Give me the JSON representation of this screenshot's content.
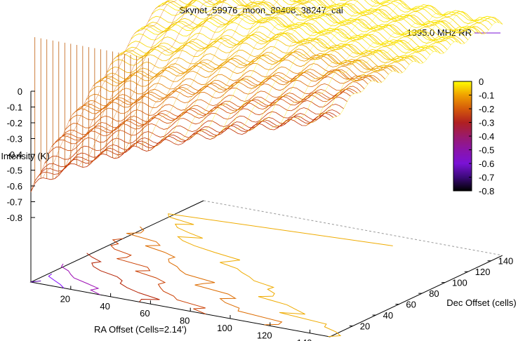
{
  "chart_data": {
    "type": "surface3d",
    "title": "Skynet_59976_moon_89408_38247_cal",
    "legend": {
      "label": "1395.0 MHz RR",
      "placement": "top-right"
    },
    "xlabel": "RA Offset (Cells=2.14')",
    "ylabel": "Dec Offset (cells)",
    "zlabel": "Intensity (K)",
    "xlim": [
      0,
      150
    ],
    "ylim": [
      0,
      150
    ],
    "zlim": [
      -0.8,
      0
    ],
    "x_ticks": [
      "20",
      "40",
      "60",
      "80",
      "100",
      "120",
      "140"
    ],
    "y_ticks": [
      "20",
      "40",
      "60",
      "80",
      "100",
      "120",
      "140"
    ],
    "z_ticks": [
      "0",
      "-0.1",
      "-0.2",
      "-0.3",
      "-0.4",
      "-0.5",
      "-0.6",
      "-0.7",
      "-0.8"
    ],
    "colorbar": {
      "ticks": [
        "0",
        "-0.1",
        "-0.2",
        "-0.3",
        "-0.4",
        "-0.5",
        "-0.6",
        "-0.7",
        "-0.8"
      ],
      "range": [
        -0.8,
        0
      ],
      "colors": [
        "#ffff00",
        "#f0a000",
        "#d55a0a",
        "#b02020",
        "#9a1a6a",
        "#8a14a8",
        "#7a12d6",
        "#3c0a7a",
        "#000000"
      ]
    },
    "surface": {
      "description_values": {
        "edge_z": -0.72,
        "center_z": -0.05,
        "far_edge_z": -0.02
      },
      "contour_levels": [
        -0.7,
        -0.6,
        -0.5,
        -0.4,
        -0.3,
        -0.2,
        -0.1
      ]
    }
  }
}
